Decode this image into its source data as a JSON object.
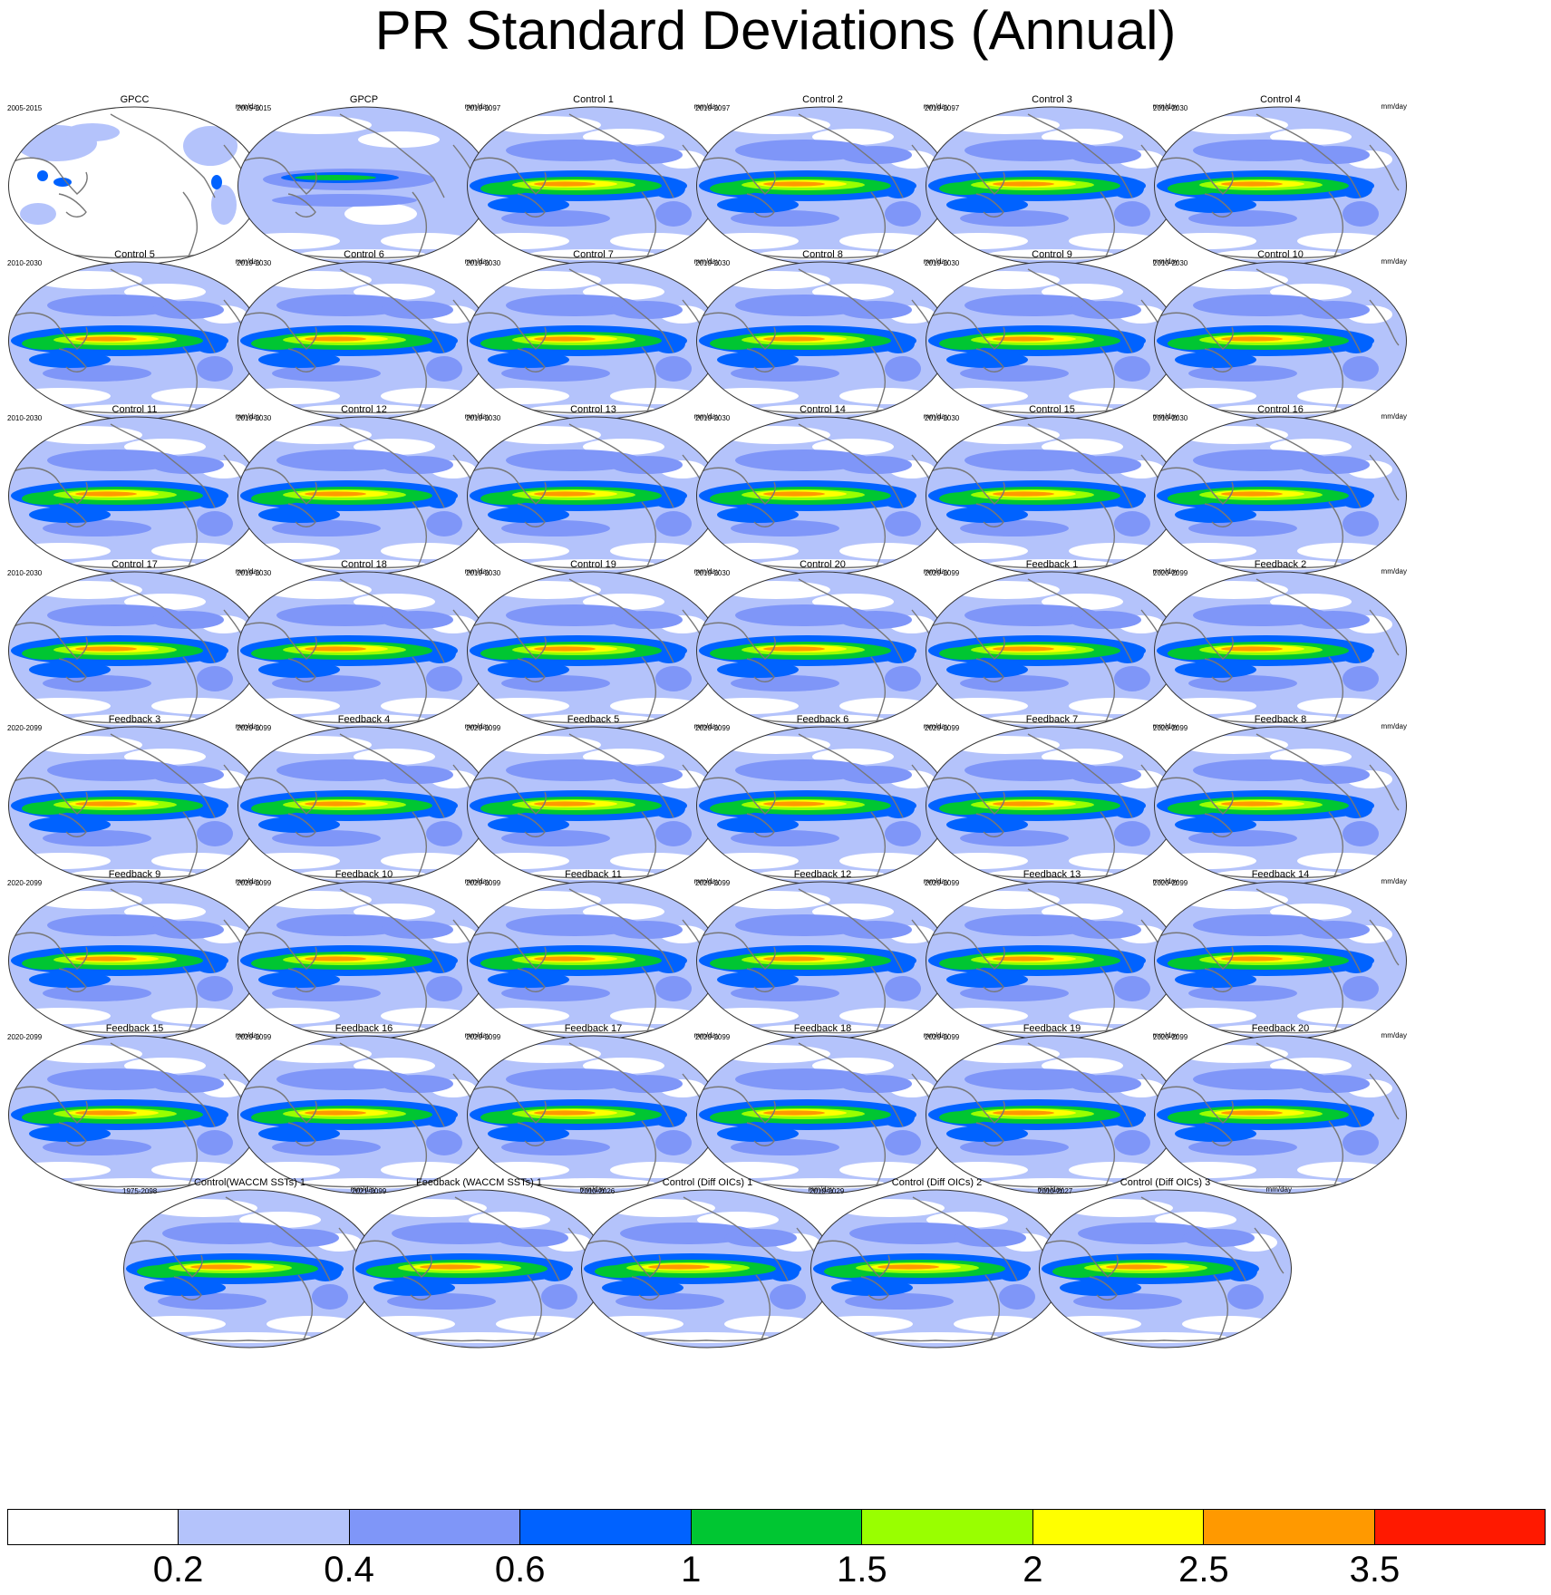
{
  "title": "PR Standard Deviations (Annual)",
  "units": "mm/day",
  "panels": [
    {
      "title": "GPCC",
      "years": "2005-2015",
      "style": "gpcc"
    },
    {
      "title": "GPCP",
      "years": "2005-2015",
      "style": "gpcp"
    },
    {
      "title": "Control 1",
      "years": "2010-2097",
      "style": "model"
    },
    {
      "title": "Control 2",
      "years": "2010-2097",
      "style": "model"
    },
    {
      "title": "Control 3",
      "years": "2010-2097",
      "style": "model"
    },
    {
      "title": "Control 4",
      "years": "2010-2030",
      "style": "model"
    },
    {
      "title": "Control 5",
      "years": "2010-2030",
      "style": "model"
    },
    {
      "title": "Control 6",
      "years": "2010-2030",
      "style": "model"
    },
    {
      "title": "Control 7",
      "years": "2010-2030",
      "style": "model"
    },
    {
      "title": "Control 8",
      "years": "2010-2030",
      "style": "model"
    },
    {
      "title": "Control 9",
      "years": "2010-2030",
      "style": "model"
    },
    {
      "title": "Control 10",
      "years": "2010-2030",
      "style": "model"
    },
    {
      "title": "Control 11",
      "years": "2010-2030",
      "style": "model"
    },
    {
      "title": "Control 12",
      "years": "2010-2030",
      "style": "model"
    },
    {
      "title": "Control 13",
      "years": "2010-2030",
      "style": "model"
    },
    {
      "title": "Control 14",
      "years": "2010-2030",
      "style": "model"
    },
    {
      "title": "Control 15",
      "years": "2010-2030",
      "style": "model"
    },
    {
      "title": "Control 16",
      "years": "2010-2030",
      "style": "model"
    },
    {
      "title": "Control 17",
      "years": "2010-2030",
      "style": "model"
    },
    {
      "title": "Control 18",
      "years": "2010-2030",
      "style": "model"
    },
    {
      "title": "Control 19",
      "years": "2010-2030",
      "style": "model"
    },
    {
      "title": "Control 20",
      "years": "2010-2030",
      "style": "model"
    },
    {
      "title": "Feedback 1",
      "years": "2020-2099",
      "style": "model"
    },
    {
      "title": "Feedback 2",
      "years": "2020-2099",
      "style": "model"
    },
    {
      "title": "Feedback 3",
      "years": "2020-2099",
      "style": "model"
    },
    {
      "title": "Feedback 4",
      "years": "2020-2099",
      "style": "model"
    },
    {
      "title": "Feedback 5",
      "years": "2020-2099",
      "style": "model"
    },
    {
      "title": "Feedback 6",
      "years": "2020-2099",
      "style": "model"
    },
    {
      "title": "Feedback 7",
      "years": "2020-2099",
      "style": "model"
    },
    {
      "title": "Feedback 8",
      "years": "2020-2099",
      "style": "model"
    },
    {
      "title": "Feedback 9",
      "years": "2020-2099",
      "style": "model"
    },
    {
      "title": "Feedback 10",
      "years": "2020-2099",
      "style": "model"
    },
    {
      "title": "Feedback 11",
      "years": "2020-2099",
      "style": "model"
    },
    {
      "title": "Feedback 12",
      "years": "2020-2099",
      "style": "model"
    },
    {
      "title": "Feedback 13",
      "years": "2020-2099",
      "style": "model"
    },
    {
      "title": "Feedback 14",
      "years": "2020-2099",
      "style": "model"
    },
    {
      "title": "Feedback 15",
      "years": "2020-2099",
      "style": "model"
    },
    {
      "title": "Feedback 16",
      "years": "2020-2099",
      "style": "model"
    },
    {
      "title": "Feedback 17",
      "years": "2020-2099",
      "style": "model"
    },
    {
      "title": "Feedback 18",
      "years": "2020-2099",
      "style": "model"
    },
    {
      "title": "Feedback 19",
      "years": "2020-2099",
      "style": "model"
    },
    {
      "title": "Feedback 20",
      "years": "2020-2099",
      "style": "model"
    },
    {
      "title": "Control(WACCM SSTs) 1",
      "years": "1975-2098",
      "style": "model"
    },
    {
      "title": "Feedback (WACCM SSTs) 1",
      "years": "2021-2099",
      "style": "model"
    },
    {
      "title": "Control (Diff OICs) 1",
      "years": "2010-2026",
      "style": "model"
    },
    {
      "title": "Control (Diff OICs) 2",
      "years": "2010-2029",
      "style": "model"
    },
    {
      "title": "Control (Diff OICs) 3",
      "years": "2010-2027",
      "style": "model"
    }
  ],
  "colorbar": {
    "colors": [
      "#ffffff",
      "#b4c3fb",
      "#7f96f8",
      "#0062ff",
      "#00c632",
      "#99ff00",
      "#ffff00",
      "#ff9900",
      "#ff1900"
    ],
    "labels": [
      "0.2",
      "0.4",
      "0.6",
      "1",
      "1.5",
      "2",
      "2.5",
      "3.5"
    ]
  }
}
